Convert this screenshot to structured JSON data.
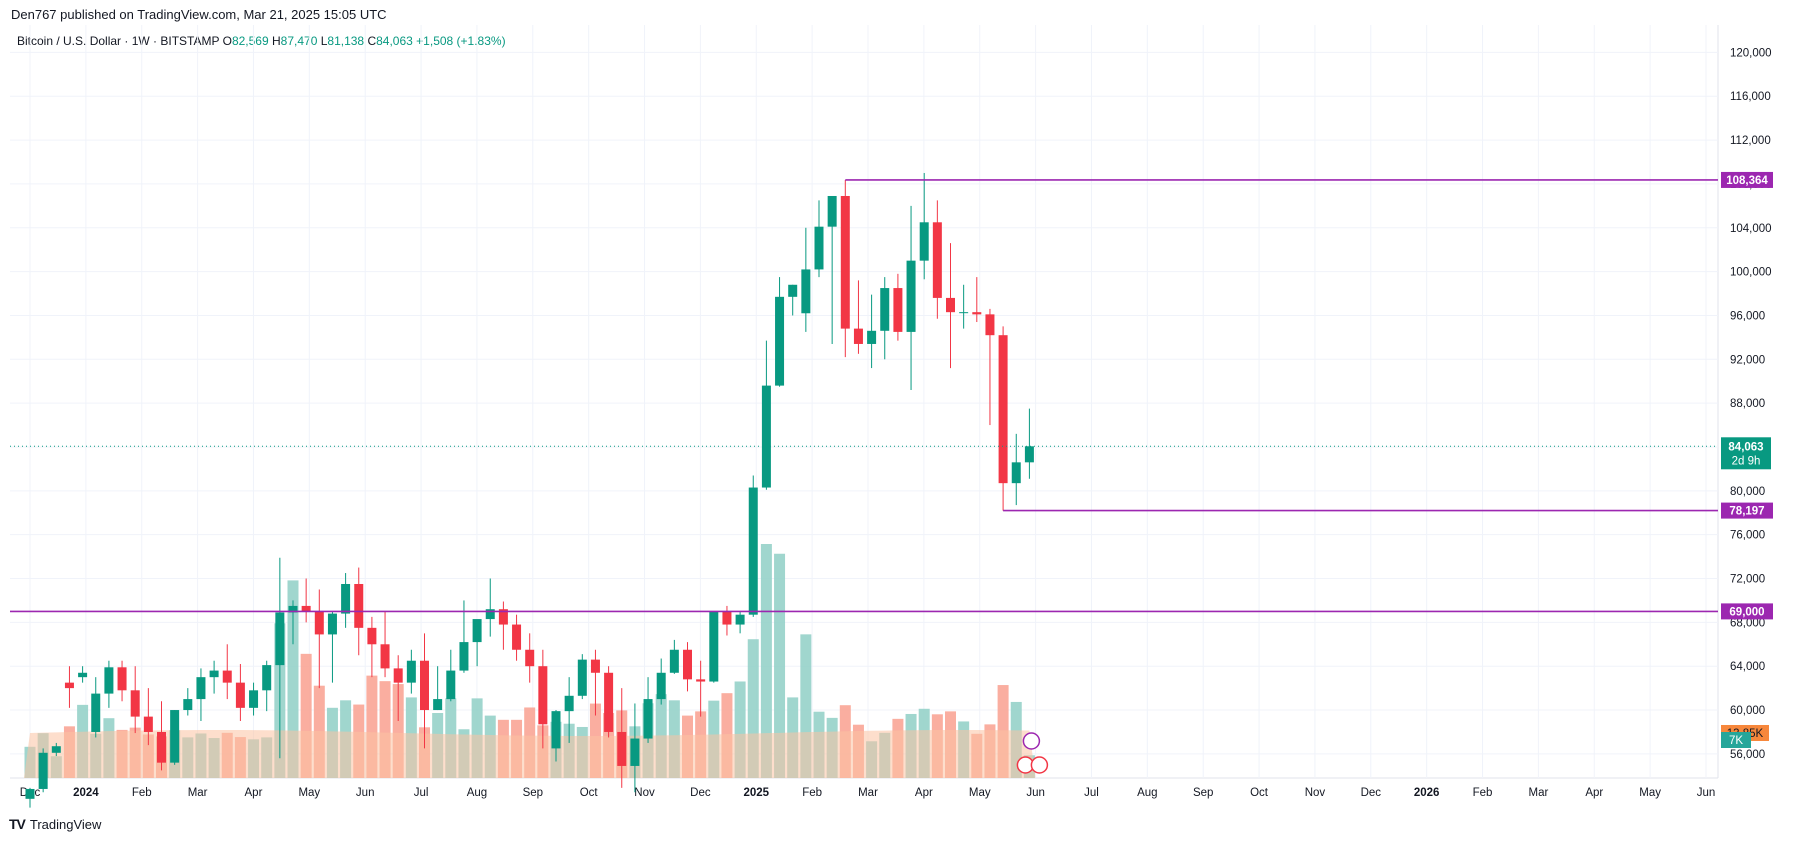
{
  "header": {
    "published": "Den767 published on TradingView.com, Mar 21, 2025 15:05 UTC"
  },
  "legend": {
    "symbol": "Bitcoin / U.S. Dollar · 1W · BITSTAMP",
    "o_label": "O",
    "o": "82,569",
    "h_label": "H",
    "h": "87,470",
    "l_label": "L",
    "l": "81,138",
    "c_label": "C",
    "c": "84,063",
    "change": "+1,508 (+1.83%)"
  },
  "footer": {
    "brand": "TradingView"
  },
  "colors": {
    "up": "#089981",
    "down": "#f23645",
    "vol_up": "#8fcfc6",
    "vol_down": "#f9a08f",
    "vol_ma": "#fbc3a3",
    "hline": "#9c27b0",
    "price_label": "#089981",
    "ma_label": "#f7873b",
    "vol_label": "#26a69a"
  },
  "chart_data": {
    "type": "candlestick",
    "y_ticks": [
      56000,
      60000,
      64000,
      68000,
      72000,
      76000,
      80000,
      84000,
      88000,
      92000,
      96000,
      100000,
      104000,
      108000,
      112000,
      116000,
      120000
    ],
    "y_tick_labels": [
      "56,000",
      "60,000",
      "64,000",
      "68,000",
      "72,000",
      "76,000",
      "80,000",
      "84,000",
      "88,000",
      "92,000",
      "96,000",
      "100,000",
      "104,000",
      "108,000",
      "112,000",
      "116,000",
      "120,000"
    ],
    "ylim": [
      53800,
      122500
    ],
    "x_ticks": [
      "Dec",
      "2024",
      "Feb",
      "Mar",
      "Apr",
      "May",
      "Jun",
      "Jul",
      "Aug",
      "Sep",
      "Oct",
      "Nov",
      "Dec",
      "2025",
      "Feb",
      "Mar",
      "Apr",
      "May",
      "Jun",
      "Jul",
      "Aug",
      "Sep",
      "Oct",
      "Nov",
      "Dec",
      "2026",
      "Feb",
      "Mar",
      "Apr",
      "May",
      "Jun"
    ],
    "current_price": {
      "value": 84063,
      "label": "84,063",
      "countdown": "2d 9h"
    },
    "horizontal_levels": [
      {
        "value": 108364,
        "label": "108,364",
        "start": "2024-12-16"
      },
      {
        "value": 78197,
        "label": "78,197",
        "start": "2025-02-24"
      },
      {
        "value": 69000,
        "label": "69,000",
        "start": "2023-11-27"
      }
    ],
    "volume_labels": {
      "ma": "13.85K",
      "volume": "7K"
    },
    "candles": [
      {
        "o": 51900,
        "h": 52900,
        "l": 51100,
        "c": 52800,
        "v": 9.6
      },
      {
        "o": 52800,
        "h": 56500,
        "l": 52500,
        "c": 56100,
        "v": 13.8
      },
      {
        "o": 56100,
        "h": 57000,
        "l": 55800,
        "c": 56700,
        "v": 6.7
      },
      {
        "o": 62500,
        "h": 64000,
        "l": 60200,
        "c": 62000,
        "v": 15.9
      },
      {
        "o": 63000,
        "h": 64000,
        "l": 62500,
        "c": 63400,
        "v": 22.5
      },
      {
        "o": 58000,
        "h": 63000,
        "l": 57500,
        "c": 61500,
        "v": 13.6
      },
      {
        "o": 61500,
        "h": 64500,
        "l": 60200,
        "c": 63900,
        "v": 18.4
      },
      {
        "o": 63900,
        "h": 64500,
        "l": 60800,
        "c": 61800,
        "v": 14.8
      },
      {
        "o": 61800,
        "h": 64000,
        "l": 57900,
        "c": 59400,
        "v": 15.5
      },
      {
        "o": 59400,
        "h": 62000,
        "l": 56800,
        "c": 58000,
        "v": 13.4
      },
      {
        "o": 58000,
        "h": 60800,
        "l": 54500,
        "c": 55200,
        "v": 12.8
      },
      {
        "o": 55200,
        "h": 60000,
        "l": 55000,
        "c": 60000,
        "v": 14.7
      },
      {
        "o": 60000,
        "h": 62000,
        "l": 59500,
        "c": 61000,
        "v": 12.5
      },
      {
        "o": 61000,
        "h": 63800,
        "l": 59000,
        "c": 63000,
        "v": 13.7
      },
      {
        "o": 63000,
        "h": 64500,
        "l": 61500,
        "c": 63600,
        "v": 12.3
      },
      {
        "o": 63600,
        "h": 66000,
        "l": 61000,
        "c": 62500,
        "v": 13.9
      },
      {
        "o": 62500,
        "h": 64200,
        "l": 59000,
        "c": 60200,
        "v": 12.6
      },
      {
        "o": 60200,
        "h": 62500,
        "l": 59500,
        "c": 61800,
        "v": 11.9
      },
      {
        "o": 61800,
        "h": 64500,
        "l": 59900,
        "c": 64100,
        "v": 12.5
      },
      {
        "o": 64100,
        "h": 73900,
        "l": 55600,
        "c": 68900,
        "v": 47.6
      },
      {
        "o": 68900,
        "h": 70000,
        "l": 66000,
        "c": 69500,
        "v": 60.8
      },
      {
        "o": 69500,
        "h": 72000,
        "l": 68000,
        "c": 69000,
        "v": 38.2
      },
      {
        "o": 69000,
        "h": 71000,
        "l": 62000,
        "c": 66900,
        "v": 28.4
      },
      {
        "o": 66900,
        "h": 69000,
        "l": 62500,
        "c": 68800,
        "v": 21.6
      },
      {
        "o": 68800,
        "h": 72500,
        "l": 67500,
        "c": 71500,
        "v": 23.9
      },
      {
        "o": 71500,
        "h": 73000,
        "l": 65000,
        "c": 67500,
        "v": 22.6
      },
      {
        "o": 67500,
        "h": 68500,
        "l": 63000,
        "c": 66000,
        "v": 31.5
      },
      {
        "o": 66000,
        "h": 69000,
        "l": 63000,
        "c": 63800,
        "v": 29.8
      },
      {
        "o": 63800,
        "h": 65000,
        "l": 59000,
        "c": 62500,
        "v": 28.9
      },
      {
        "o": 62500,
        "h": 65500,
        "l": 61500,
        "c": 64500,
        "v": 24.8
      },
      {
        "o": 64500,
        "h": 67000,
        "l": 56500,
        "c": 60000,
        "v": 15.6
      },
      {
        "o": 60000,
        "h": 64000,
        "l": 60000,
        "c": 61000,
        "v": 20.0
      },
      {
        "o": 61000,
        "h": 65500,
        "l": 60800,
        "c": 63600,
        "v": 24.5
      },
      {
        "o": 63600,
        "h": 70000,
        "l": 63400,
        "c": 66200,
        "v": 15.0
      },
      {
        "o": 66200,
        "h": 68000,
        "l": 64000,
        "c": 68300,
        "v": 24.5
      },
      {
        "o": 68300,
        "h": 72000,
        "l": 66700,
        "c": 69200,
        "v": 19.2
      },
      {
        "o": 69200,
        "h": 69900,
        "l": 65500,
        "c": 67800,
        "v": 17.9
      },
      {
        "o": 67800,
        "h": 68700,
        "l": 64500,
        "c": 65500,
        "v": 17.9
      },
      {
        "o": 65500,
        "h": 67000,
        "l": 62500,
        "c": 64000,
        "v": 21.7
      },
      {
        "o": 64000,
        "h": 65500,
        "l": 56500,
        "c": 58700,
        "v": 16.2
      },
      {
        "o": 56500,
        "h": 60000,
        "l": 55300,
        "c": 59900,
        "v": 17.3
      },
      {
        "o": 59900,
        "h": 63000,
        "l": 57000,
        "c": 61300,
        "v": 16.7
      },
      {
        "o": 61300,
        "h": 65100,
        "l": 61000,
        "c": 64600,
        "v": 15.7
      },
      {
        "o": 64600,
        "h": 65500,
        "l": 59500,
        "c": 63400,
        "v": 22.9
      },
      {
        "o": 63400,
        "h": 64000,
        "l": 57500,
        "c": 58000,
        "v": 20.0
      },
      {
        "o": 58000,
        "h": 62000,
        "l": 52900,
        "c": 54900,
        "v": 20.8
      },
      {
        "o": 54900,
        "h": 60600,
        "l": 52500,
        "c": 57400,
        "v": 15.9
      },
      {
        "o": 57400,
        "h": 63000,
        "l": 57000,
        "c": 61000,
        "v": 23.0
      },
      {
        "o": 61000,
        "h": 64700,
        "l": 60500,
        "c": 63400,
        "v": 25.8
      },
      {
        "o": 63400,
        "h": 66400,
        "l": 63300,
        "c": 65500,
        "v": 23.9
      },
      {
        "o": 65500,
        "h": 66200,
        "l": 61700,
        "c": 62800,
        "v": 19.2
      },
      {
        "o": 62800,
        "h": 64500,
        "l": 59400,
        "c": 62600,
        "v": 20.5
      },
      {
        "o": 62600,
        "h": 69000,
        "l": 62500,
        "c": 69000,
        "v": 23.8
      },
      {
        "o": 69000,
        "h": 69500,
        "l": 66800,
        "c": 67800,
        "v": 26.1
      },
      {
        "o": 67800,
        "h": 69000,
        "l": 67000,
        "c": 68700,
        "v": 29.7
      },
      {
        "o": 68700,
        "h": 81400,
        "l": 68500,
        "c": 80300,
        "v": 42.7
      },
      {
        "o": 80300,
        "h": 93700,
        "l": 80100,
        "c": 89600,
        "v": 72.0
      },
      {
        "o": 89600,
        "h": 99500,
        "l": 89500,
        "c": 97700,
        "v": 69.0
      },
      {
        "o": 97700,
        "h": 98800,
        "l": 96000,
        "c": 98800,
        "v": 24.8
      },
      {
        "o": 96200,
        "h": 104000,
        "l": 94500,
        "c": 100200,
        "v": 44.2
      },
      {
        "o": 100200,
        "h": 106500,
        "l": 99500,
        "c": 104100,
        "v": 20.4
      },
      {
        "o": 104100,
        "h": 106900,
        "l": 93400,
        "c": 106900,
        "v": 18.5
      },
      {
        "o": 106900,
        "h": 108364,
        "l": 92200,
        "c": 94800,
        "v": 22.4
      },
      {
        "o": 94800,
        "h": 99200,
        "l": 92500,
        "c": 93400,
        "v": 16.4
      },
      {
        "o": 93400,
        "h": 97900,
        "l": 91200,
        "c": 94600,
        "v": 11.3
      },
      {
        "o": 94600,
        "h": 99500,
        "l": 92000,
        "c": 98500,
        "v": 13.9
      },
      {
        "o": 98500,
        "h": 99800,
        "l": 93700,
        "c": 94500,
        "v": 18.2
      },
      {
        "o": 94500,
        "h": 106000,
        "l": 89200,
        "c": 101000,
        "v": 19.7
      },
      {
        "o": 101000,
        "h": 109000,
        "l": 99300,
        "c": 104500,
        "v": 21.3
      },
      {
        "o": 104500,
        "h": 106500,
        "l": 95700,
        "c": 97600,
        "v": 19.6
      },
      {
        "o": 97600,
        "h": 102600,
        "l": 91200,
        "c": 96300,
        "v": 20.5
      },
      {
        "o": 96300,
        "h": 98800,
        "l": 94800,
        "c": 96300,
        "v": 17.4
      },
      {
        "o": 96300,
        "h": 99500,
        "l": 95400,
        "c": 96100,
        "v": 13.6
      },
      {
        "o": 96100,
        "h": 96600,
        "l": 86000,
        "c": 94200,
        "v": 16.5
      },
      {
        "o": 94200,
        "h": 95000,
        "l": 78197,
        "c": 80700,
        "v": 28.6
      },
      {
        "o": 80700,
        "h": 85200,
        "l": 78700,
        "c": 82600,
        "v": 23.4
      },
      {
        "o": 82600,
        "h": 87500,
        "l": 81100,
        "c": 84063,
        "v": 7.0
      }
    ]
  }
}
